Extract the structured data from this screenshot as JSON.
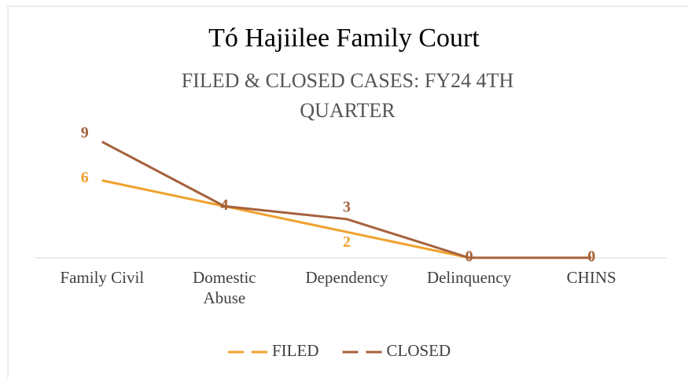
{
  "chart_data": {
    "type": "line",
    "title": "Tó Hajiilee Family Court",
    "subtitle": "FILED & CLOSED CASES: FY24 4TH QUARTER",
    "categories": [
      "Family Civil",
      "Domestic Abuse",
      "Dependency",
      "Delinquency",
      "CHINS"
    ],
    "series": [
      {
        "name": "FILED",
        "color": "#f0a12e",
        "values": [
          6,
          4,
          2,
          0,
          0
        ]
      },
      {
        "name": "CLOSED",
        "color": "#a5613c",
        "values": [
          9,
          4,
          3,
          0,
          0
        ]
      }
    ],
    "ylim": [
      0,
      10
    ],
    "legend": "bottom"
  }
}
